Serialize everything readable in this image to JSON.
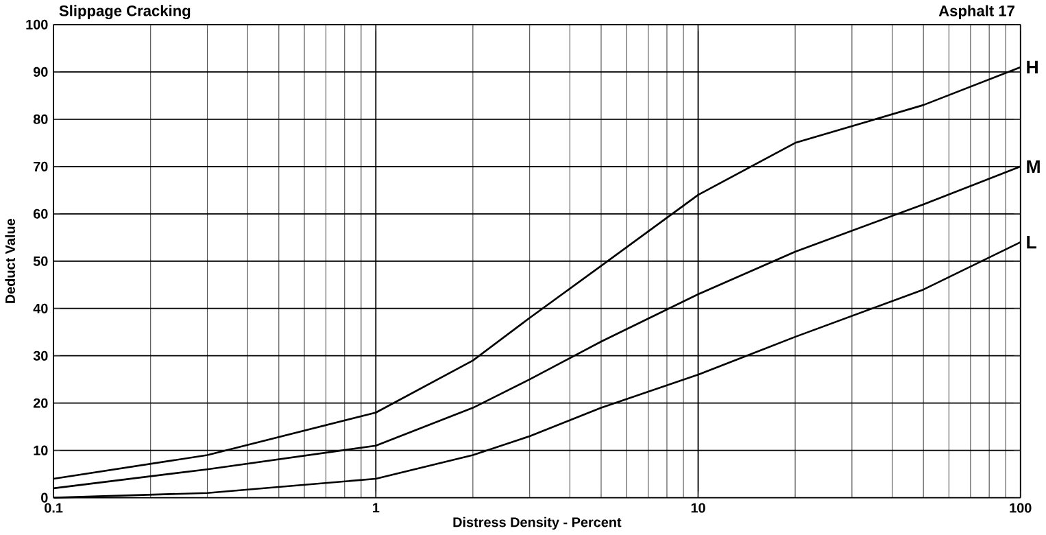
{
  "chart_data": {
    "type": "line",
    "title": "Slippage Cracking",
    "subtitle": "Asphalt 17",
    "xlabel": "Distress Density - Percent",
    "ylabel": "Deduct Value",
    "log": "x",
    "grid": true,
    "legend": false,
    "xlim": [
      0.1,
      100
    ],
    "ylim": [
      0,
      100
    ],
    "xticks": [
      0.1,
      1,
      10,
      100
    ],
    "yticks": [
      0,
      10,
      20,
      30,
      40,
      50,
      60,
      70,
      80,
      90,
      100
    ],
    "x": [
      0.1,
      0.3,
      1,
      2,
      3,
      5,
      10,
      20,
      50,
      100
    ],
    "series": [
      {
        "name": "H",
        "color": "#000000",
        "values": [
          4,
          9,
          18,
          29,
          38,
          49,
          64,
          75,
          83,
          91
        ]
      },
      {
        "name": "M",
        "color": "#000000",
        "values": [
          2,
          6,
          11,
          19,
          25,
          33,
          43,
          52,
          62,
          70
        ]
      },
      {
        "name": "L",
        "color": "#000000",
        "values": [
          0,
          1,
          4,
          9,
          13,
          19,
          26,
          34,
          44,
          54
        ]
      }
    ]
  }
}
